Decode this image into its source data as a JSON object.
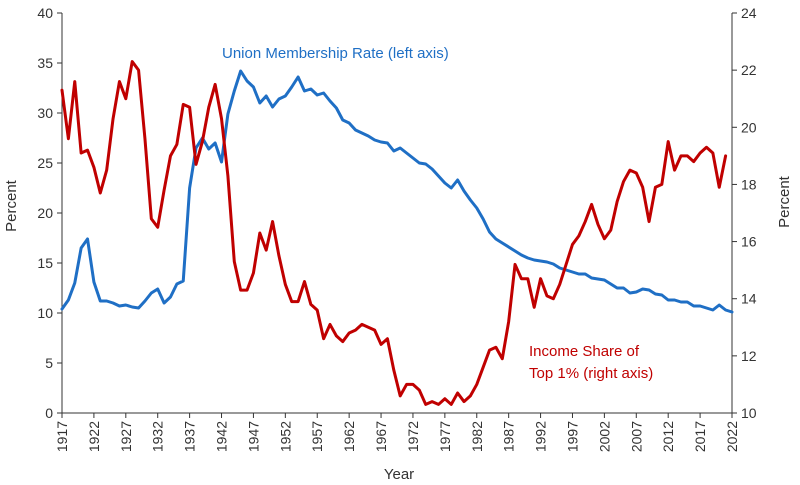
{
  "chart_data": {
    "type": "line",
    "xlabel": "Year",
    "ylabel_left": "Percent",
    "ylabel_right": "Percent",
    "x_ticks": [
      "1917",
      "1922",
      "1927",
      "1932",
      "1937",
      "1942",
      "1947",
      "1952",
      "1957",
      "1962",
      "1967",
      "1972",
      "1977",
      "1982",
      "1987",
      "1992",
      "1997",
      "2002",
      "2007",
      "2012",
      "2017",
      "2022"
    ],
    "xlim": [
      1917,
      2022
    ],
    "ylim_left": [
      0,
      40
    ],
    "ylim_right": [
      10,
      24
    ],
    "yticks_left": [
      "0",
      "5",
      "10",
      "15",
      "20",
      "25",
      "30",
      "35",
      "40"
    ],
    "yticks_right": [
      "10",
      "12",
      "14",
      "16",
      "18",
      "20",
      "22",
      "24"
    ],
    "grid": false,
    "series": [
      {
        "name": "Union Membership Rate (left axis)",
        "axis": "left",
        "color": "#1f6fc5",
        "points": [
          [
            1917,
            10.4
          ],
          [
            1918,
            11.3
          ],
          [
            1919,
            13.0
          ],
          [
            1920,
            16.5
          ],
          [
            1921,
            17.4
          ],
          [
            1922,
            13.1
          ],
          [
            1923,
            11.2
          ],
          [
            1924,
            11.2
          ],
          [
            1925,
            11.0
          ],
          [
            1926,
            10.7
          ],
          [
            1927,
            10.8
          ],
          [
            1928,
            10.6
          ],
          [
            1929,
            10.5
          ],
          [
            1930,
            11.2
          ],
          [
            1931,
            12.0
          ],
          [
            1932,
            12.4
          ],
          [
            1933,
            11.0
          ],
          [
            1934,
            11.6
          ],
          [
            1935,
            12.9
          ],
          [
            1936,
            13.2
          ],
          [
            1937,
            22.5
          ],
          [
            1938,
            26.5
          ],
          [
            1939,
            27.5
          ],
          [
            1940,
            26.4
          ],
          [
            1941,
            27.0
          ],
          [
            1942,
            25.1
          ],
          [
            1943,
            29.9
          ],
          [
            1944,
            32.2
          ],
          [
            1945,
            34.2
          ],
          [
            1946,
            33.2
          ],
          [
            1947,
            32.6
          ],
          [
            1948,
            31.0
          ],
          [
            1949,
            31.7
          ],
          [
            1950,
            30.6
          ],
          [
            1951,
            31.4
          ],
          [
            1952,
            31.7
          ],
          [
            1953,
            32.6
          ],
          [
            1954,
            33.6
          ],
          [
            1955,
            32.2
          ],
          [
            1956,
            32.4
          ],
          [
            1957,
            31.8
          ],
          [
            1958,
            32.0
          ],
          [
            1959,
            31.2
          ],
          [
            1960,
            30.5
          ],
          [
            1961,
            29.3
          ],
          [
            1962,
            29.0
          ],
          [
            1963,
            28.3
          ],
          [
            1964,
            28.0
          ],
          [
            1965,
            27.7
          ],
          [
            1966,
            27.3
          ],
          [
            1967,
            27.1
          ],
          [
            1968,
            27.0
          ],
          [
            1969,
            26.2
          ],
          [
            1970,
            26.5
          ],
          [
            1971,
            26.0
          ],
          [
            1972,
            25.5
          ],
          [
            1973,
            25.0
          ],
          [
            1974,
            24.9
          ],
          [
            1975,
            24.4
          ],
          [
            1976,
            23.7
          ],
          [
            1977,
            23.0
          ],
          [
            1978,
            22.5
          ],
          [
            1979,
            23.3
          ],
          [
            1980,
            22.2
          ],
          [
            1981,
            21.3
          ],
          [
            1982,
            20.5
          ],
          [
            1983,
            19.4
          ],
          [
            1984,
            18.1
          ],
          [
            1985,
            17.4
          ],
          [
            1986,
            17.0
          ],
          [
            1987,
            16.6
          ],
          [
            1988,
            16.2
          ],
          [
            1989,
            15.8
          ],
          [
            1990,
            15.5
          ],
          [
            1991,
            15.3
          ],
          [
            1992,
            15.2
          ],
          [
            1993,
            15.1
          ],
          [
            1994,
            14.9
          ],
          [
            1995,
            14.5
          ],
          [
            1996,
            14.3
          ],
          [
            1997,
            14.1
          ],
          [
            1998,
            13.9
          ],
          [
            1999,
            13.9
          ],
          [
            2000,
            13.5
          ],
          [
            2001,
            13.4
          ],
          [
            2002,
            13.3
          ],
          [
            2003,
            12.9
          ],
          [
            2004,
            12.5
          ],
          [
            2005,
            12.5
          ],
          [
            2006,
            12.0
          ],
          [
            2007,
            12.1
          ],
          [
            2008,
            12.4
          ],
          [
            2009,
            12.3
          ],
          [
            2010,
            11.9
          ],
          [
            2011,
            11.8
          ],
          [
            2012,
            11.3
          ],
          [
            2013,
            11.3
          ],
          [
            2014,
            11.1
          ],
          [
            2015,
            11.1
          ],
          [
            2016,
            10.7
          ],
          [
            2017,
            10.7
          ],
          [
            2018,
            10.5
          ],
          [
            2019,
            10.3
          ],
          [
            2020,
            10.8
          ],
          [
            2021,
            10.3
          ],
          [
            2022,
            10.1
          ]
        ]
      },
      {
        "name": "Income Share of Top 1% (right axis)",
        "axis": "right",
        "color": "#c00000",
        "points": [
          [
            1917,
            21.3
          ],
          [
            1918,
            19.6
          ],
          [
            1919,
            21.6
          ],
          [
            1920,
            19.1
          ],
          [
            1921,
            19.2
          ],
          [
            1922,
            18.6
          ],
          [
            1923,
            17.7
          ],
          [
            1924,
            18.5
          ],
          [
            1925,
            20.3
          ],
          [
            1926,
            21.6
          ],
          [
            1927,
            21.0
          ],
          [
            1928,
            22.3
          ],
          [
            1929,
            22.0
          ],
          [
            1930,
            19.6
          ],
          [
            1931,
            16.8
          ],
          [
            1932,
            16.5
          ],
          [
            1933,
            17.8
          ],
          [
            1934,
            19.0
          ],
          [
            1935,
            19.4
          ],
          [
            1936,
            20.8
          ],
          [
            1937,
            20.7
          ],
          [
            1938,
            18.7
          ],
          [
            1939,
            19.5
          ],
          [
            1940,
            20.7
          ],
          [
            1941,
            21.5
          ],
          [
            1942,
            20.3
          ],
          [
            1943,
            18.3
          ],
          [
            1944,
            15.3
          ],
          [
            1945,
            14.3
          ],
          [
            1946,
            14.3
          ],
          [
            1947,
            14.9
          ],
          [
            1948,
            16.3
          ],
          [
            1949,
            15.7
          ],
          [
            1950,
            16.7
          ],
          [
            1951,
            15.5
          ],
          [
            1952,
            14.5
          ],
          [
            1953,
            13.9
          ],
          [
            1954,
            13.9
          ],
          [
            1955,
            14.6
          ],
          [
            1956,
            13.8
          ],
          [
            1957,
            13.6
          ],
          [
            1958,
            12.6
          ],
          [
            1959,
            13.1
          ],
          [
            1960,
            12.7
          ],
          [
            1961,
            12.5
          ],
          [
            1962,
            12.8
          ],
          [
            1963,
            12.9
          ],
          [
            1964,
            13.1
          ],
          [
            1965,
            13.0
          ],
          [
            1966,
            12.9
          ],
          [
            1967,
            12.4
          ],
          [
            1968,
            12.6
          ],
          [
            1969,
            11.5
          ],
          [
            1970,
            10.6
          ],
          [
            1971,
            11.0
          ],
          [
            1972,
            11.0
          ],
          [
            1973,
            10.8
          ],
          [
            1974,
            10.3
          ],
          [
            1975,
            10.4
          ],
          [
            1976,
            10.3
          ],
          [
            1977,
            10.5
          ],
          [
            1978,
            10.3
          ],
          [
            1979,
            10.7
          ],
          [
            1980,
            10.4
          ],
          [
            1981,
            10.6
          ],
          [
            1982,
            11.0
          ],
          [
            1983,
            11.6
          ],
          [
            1984,
            12.2
          ],
          [
            1985,
            12.3
          ],
          [
            1986,
            11.9
          ],
          [
            1987,
            13.2
          ],
          [
            1988,
            15.2
          ],
          [
            1989,
            14.7
          ],
          [
            1990,
            14.7
          ],
          [
            1991,
            13.7
          ],
          [
            1992,
            14.7
          ],
          [
            1993,
            14.1
          ],
          [
            1994,
            14.0
          ],
          [
            1995,
            14.5
          ],
          [
            1996,
            15.2
          ],
          [
            1997,
            15.9
          ],
          [
            1998,
            16.2
          ],
          [
            1999,
            16.7
          ],
          [
            2000,
            17.3
          ],
          [
            2001,
            16.6
          ],
          [
            2002,
            16.1
          ],
          [
            2003,
            16.4
          ],
          [
            2004,
            17.4
          ],
          [
            2005,
            18.1
          ],
          [
            2006,
            18.5
          ],
          [
            2007,
            18.4
          ],
          [
            2008,
            17.9
          ],
          [
            2009,
            16.7
          ],
          [
            2010,
            17.9
          ],
          [
            2011,
            18.0
          ],
          [
            2012,
            19.5
          ],
          [
            2013,
            18.5
          ],
          [
            2014,
            19.0
          ],
          [
            2015,
            19.0
          ],
          [
            2016,
            18.8
          ],
          [
            2017,
            19.1
          ],
          [
            2018,
            19.3
          ],
          [
            2019,
            19.1
          ],
          [
            2020,
            17.9
          ],
          [
            2021,
            19.0
          ]
        ]
      }
    ],
    "annotations": {
      "union_label": "Union Membership Rate (left axis)",
      "income_label_line1": "Income Share of",
      "income_label_line2": "Top 1% (right axis)"
    }
  }
}
